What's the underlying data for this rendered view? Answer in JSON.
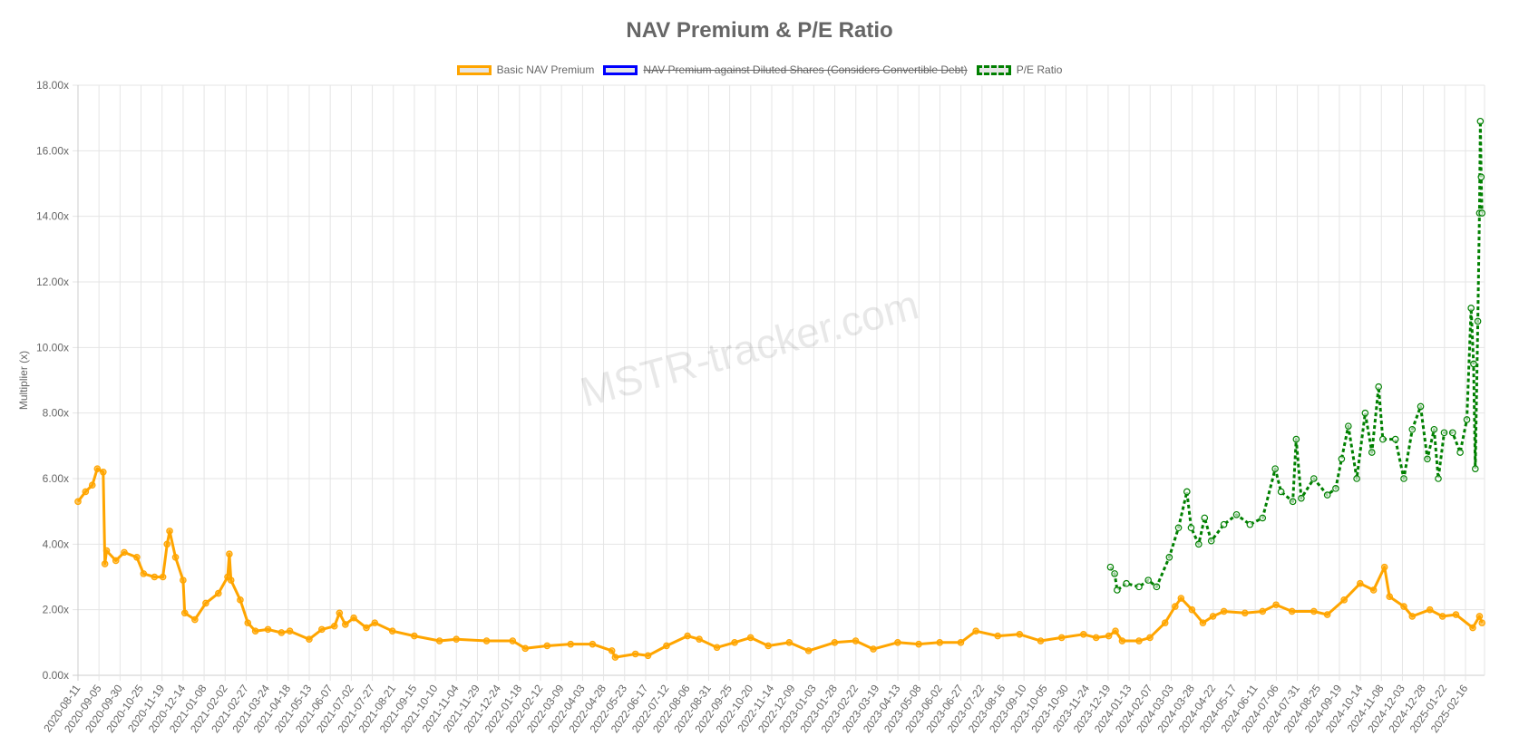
{
  "chart_data": {
    "type": "line",
    "title": "NAV Premium & P/E Ratio",
    "xlabel": "",
    "ylabel": "Multiplier (x)",
    "ylim": [
      0,
      18
    ],
    "yticks": [
      "0.00x",
      "2.00x",
      "4.00x",
      "6.00x",
      "8.00x",
      "10.00x",
      "12.00x",
      "14.00x",
      "16.00x",
      "18.00x"
    ],
    "x_range": [
      "2020-08-11",
      "2025-03-11"
    ],
    "xticks": [
      "2020-08-11",
      "2020-09-05",
      "2020-09-30",
      "2020-10-25",
      "2020-11-19",
      "2020-12-14",
      "2021-01-08",
      "2021-02-02",
      "2021-02-27",
      "2021-03-24",
      "2021-04-18",
      "2021-05-13",
      "2021-06-07",
      "2021-07-02",
      "2021-07-27",
      "2021-08-21",
      "2021-09-15",
      "2021-10-10",
      "2021-11-04",
      "2021-11-29",
      "2021-12-24",
      "2022-01-18",
      "2022-02-12",
      "2022-03-09",
      "2022-04-03",
      "2022-04-28",
      "2022-05-23",
      "2022-06-17",
      "2022-07-12",
      "2022-08-06",
      "2022-08-31",
      "2022-09-25",
      "2022-10-20",
      "2022-11-14",
      "2022-12-09",
      "2023-01-03",
      "2023-01-28",
      "2023-02-22",
      "2023-03-19",
      "2023-04-13",
      "2023-05-08",
      "2023-06-02",
      "2023-06-27",
      "2023-07-22",
      "2023-08-16",
      "2023-09-10",
      "2023-10-05",
      "2023-10-30",
      "2023-11-24",
      "2023-12-19",
      "2024-01-13",
      "2024-02-07",
      "2024-03-03",
      "2024-03-28",
      "2024-04-22",
      "2024-05-17",
      "2024-06-11",
      "2024-07-06",
      "2024-07-31",
      "2024-08-25",
      "2024-09-19",
      "2024-10-14",
      "2024-11-08",
      "2024-12-03",
      "2024-12-28",
      "2025-01-22",
      "2025-02-16"
    ],
    "grid": true,
    "legend_position": "top",
    "watermark": "MSTR-tracker.com",
    "series": [
      {
        "name": "Basic NAV Premium",
        "color": "#FFA500",
        "hidden": false,
        "dashed": false,
        "x": [
          "2020-08-11",
          "2020-08-20",
          "2020-08-28",
          "2020-09-03",
          "2020-09-10",
          "2020-09-12",
          "2020-09-14",
          "2020-09-25",
          "2020-10-05",
          "2020-10-20",
          "2020-10-28",
          "2020-11-10",
          "2020-11-20",
          "2020-11-25",
          "2020-11-28",
          "2020-12-05",
          "2020-12-14",
          "2020-12-16",
          "2020-12-28",
          "2021-01-10",
          "2021-01-25",
          "2021-02-05",
          "2021-02-07",
          "2021-02-09",
          "2021-02-20",
          "2021-03-01",
          "2021-03-10",
          "2021-03-25",
          "2021-04-10",
          "2021-04-20",
          "2021-05-13",
          "2021-05-28",
          "2021-06-12",
          "2021-06-18",
          "2021-06-25",
          "2021-07-05",
          "2021-07-20",
          "2021-07-30",
          "2021-08-20",
          "2021-09-15",
          "2021-10-15",
          "2021-11-04",
          "2021-12-10",
          "2022-01-10",
          "2022-01-25",
          "2022-02-20",
          "2022-03-20",
          "2022-04-15",
          "2022-05-08",
          "2022-05-12",
          "2022-06-05",
          "2022-06-20",
          "2022-07-12",
          "2022-08-06",
          "2022-08-20",
          "2022-09-10",
          "2022-10-01",
          "2022-10-20",
          "2022-11-10",
          "2022-12-05",
          "2022-12-28",
          "2023-01-28",
          "2023-02-22",
          "2023-03-15",
          "2023-04-13",
          "2023-05-08",
          "2023-06-02",
          "2023-06-27",
          "2023-07-15",
          "2023-08-10",
          "2023-09-05",
          "2023-09-30",
          "2023-10-25",
          "2023-11-20",
          "2023-12-05",
          "2023-12-20",
          "2023-12-28",
          "2024-01-05",
          "2024-01-25",
          "2024-02-07",
          "2024-02-25",
          "2024-03-08",
          "2024-03-15",
          "2024-03-28",
          "2024-04-10",
          "2024-04-22",
          "2024-05-05",
          "2024-05-30",
          "2024-06-20",
          "2024-07-06",
          "2024-07-25",
          "2024-08-20",
          "2024-09-05",
          "2024-09-25",
          "2024-10-14",
          "2024-10-30",
          "2024-11-12",
          "2024-11-18",
          "2024-12-05",
          "2024-12-15",
          "2025-01-05",
          "2025-01-20",
          "2025-02-05",
          "2025-02-25",
          "2025-03-05",
          "2025-03-08"
        ],
        "values": [
          5.3,
          5.6,
          5.8,
          6.3,
          6.2,
          3.4,
          3.8,
          3.5,
          3.75,
          3.6,
          3.1,
          3.0,
          3.0,
          4.0,
          4.4,
          3.6,
          2.9,
          1.9,
          1.7,
          2.2,
          2.5,
          3.0,
          3.7,
          2.9,
          2.3,
          1.6,
          1.35,
          1.4,
          1.3,
          1.35,
          1.1,
          1.4,
          1.5,
          1.9,
          1.55,
          1.75,
          1.45,
          1.6,
          1.35,
          1.2,
          1.05,
          1.1,
          1.05,
          1.05,
          0.82,
          0.9,
          0.95,
          0.95,
          0.75,
          0.55,
          0.65,
          0.6,
          0.9,
          1.2,
          1.1,
          0.85,
          1.0,
          1.15,
          0.9,
          1.0,
          0.75,
          1.0,
          1.05,
          0.8,
          1.0,
          0.95,
          1.0,
          1.0,
          1.35,
          1.2,
          1.25,
          1.05,
          1.15,
          1.25,
          1.15,
          1.2,
          1.35,
          1.05,
          1.05,
          1.15,
          1.6,
          2.1,
          2.35,
          2.0,
          1.6,
          1.8,
          1.95,
          1.9,
          1.95,
          2.15,
          1.95,
          1.95,
          1.85,
          2.3,
          2.8,
          2.6,
          3.3,
          2.4,
          2.1,
          1.8,
          2.0,
          1.8,
          1.85,
          1.45,
          1.8,
          1.6
        ]
      },
      {
        "name": "NAV Premium against Diluted Shares (Considers Convertible Debt)",
        "color": "#0000FF",
        "hidden": true,
        "dashed": false,
        "x": [],
        "values": []
      },
      {
        "name": "P/E Ratio",
        "color": "#008000",
        "hidden": false,
        "dashed": true,
        "x": [
          "2023-12-22",
          "2023-12-27",
          "2023-12-30",
          "2024-01-10",
          "2024-01-25",
          "2024-02-05",
          "2024-02-15",
          "2024-03-01",
          "2024-03-12",
          "2024-03-22",
          "2024-03-27",
          "2024-04-05",
          "2024-04-12",
          "2024-04-20",
          "2024-05-05",
          "2024-05-20",
          "2024-06-05",
          "2024-06-20",
          "2024-07-05",
          "2024-07-12",
          "2024-07-26",
          "2024-07-30",
          "2024-08-05",
          "2024-08-20",
          "2024-09-05",
          "2024-09-15",
          "2024-09-22",
          "2024-09-30",
          "2024-10-10",
          "2024-10-20",
          "2024-10-28",
          "2024-11-05",
          "2024-11-10",
          "2024-11-25",
          "2024-12-05",
          "2024-12-15",
          "2024-12-25",
          "2025-01-02",
          "2025-01-10",
          "2025-01-15",
          "2025-01-22",
          "2025-02-01",
          "2025-02-10",
          "2025-02-18",
          "2025-02-23",
          "2025-02-26",
          "2025-02-28",
          "2025-03-03",
          "2025-03-05",
          "2025-03-06",
          "2025-03-07",
          "2025-03-08"
        ],
        "values": [
          3.3,
          3.1,
          2.6,
          2.8,
          2.7,
          2.9,
          2.7,
          3.6,
          4.5,
          5.6,
          4.5,
          4.0,
          4.8,
          4.1,
          4.6,
          4.9,
          4.6,
          4.8,
          6.3,
          5.6,
          5.3,
          7.2,
          5.4,
          6.0,
          5.5,
          5.7,
          6.6,
          7.6,
          6.0,
          8.0,
          6.8,
          8.8,
          7.2,
          7.2,
          6.0,
          7.5,
          8.2,
          6.6,
          7.5,
          6.0,
          7.4,
          7.4,
          6.8,
          7.8,
          11.2,
          9.5,
          6.3,
          10.8,
          14.1,
          16.9,
          15.2,
          14.1
        ]
      }
    ]
  }
}
